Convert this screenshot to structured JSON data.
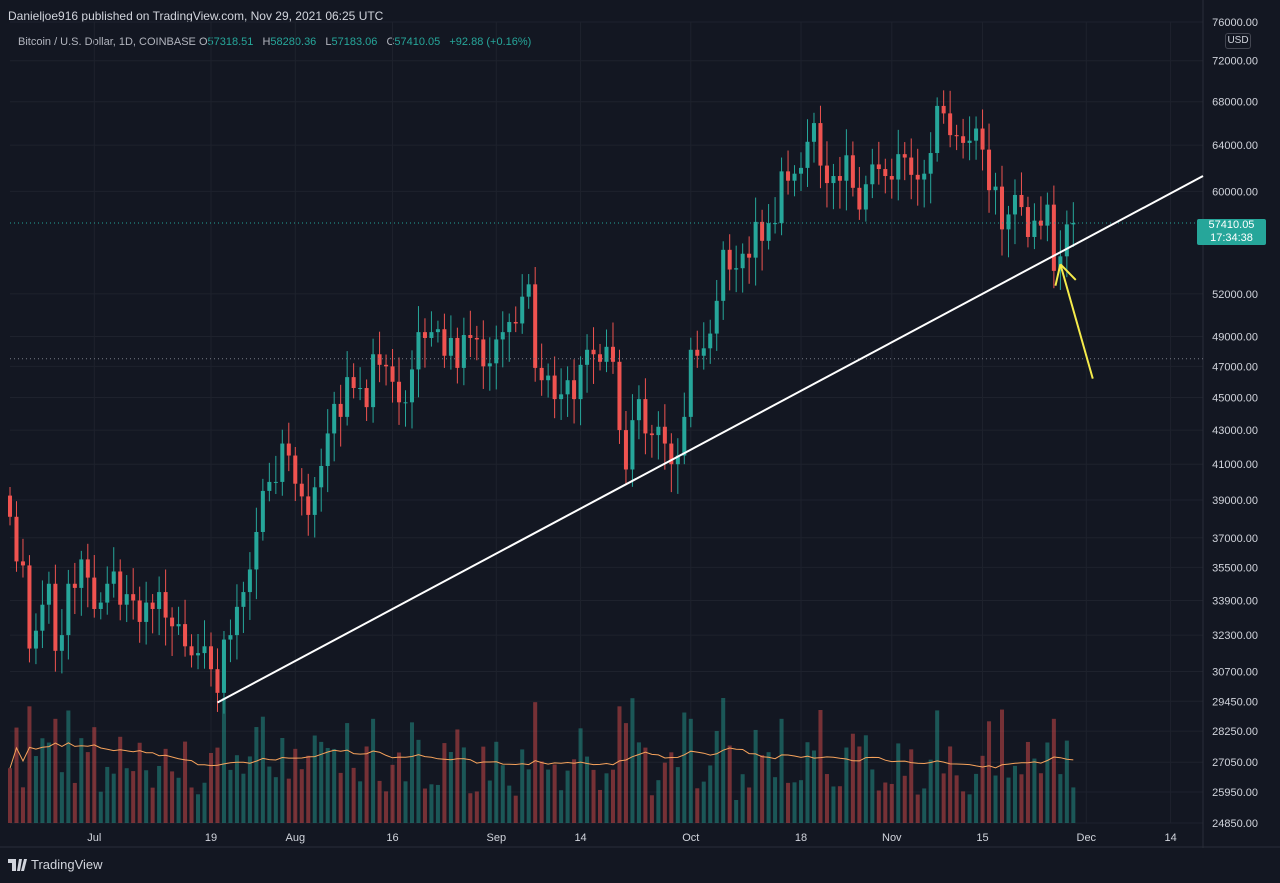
{
  "header": {
    "published": "Danieljoe916 published on TradingView.com, Nov 29, 2021 06:25 UTC",
    "symbol": "Bitcoin / U.S. Dollar, 1D, COINBASE",
    "open_label": "O",
    "open": "57318.51",
    "high_label": "H",
    "high": "58280.36",
    "low_label": "L",
    "low": "57183.06",
    "close_label": "C",
    "close": "57410.05",
    "change": "+92.88 (+0.16%)"
  },
  "currency": "USD",
  "last_price": {
    "price": "57410.05",
    "countdown": "17:34:38"
  },
  "footer": {
    "brand": "TradingView",
    "icon": "tradingview-logo-icon"
  },
  "colors": {
    "up": "#26a69a",
    "down": "#ef5350",
    "background": "#131722",
    "grid": "#1e222d",
    "trendline": "#ffffff",
    "arrow": "#f5eb4b",
    "volume_ma": "#f7a35c"
  },
  "chart_data": {
    "type": "candlestick",
    "symbol": "BTC/USD",
    "interval": "1D",
    "x_tick_labels": [
      "Jul",
      "19",
      "Aug",
      "16",
      "Sep",
      "14",
      "Oct",
      "18",
      "Nov",
      "15",
      "Dec",
      "14"
    ],
    "x_tick_dates": [
      "2021-07-01",
      "2021-07-19",
      "2021-08-01",
      "2021-08-16",
      "2021-09-01",
      "2021-09-14",
      "2021-10-01",
      "2021-10-18",
      "2021-11-01",
      "2021-11-15",
      "2021-12-01",
      "2021-12-14"
    ],
    "y_tick_labels": [
      "76000.00",
      "72000.00",
      "68000.00",
      "64000.00",
      "60000.00",
      "57410.05",
      "52000.00",
      "49000.00",
      "47000.00",
      "45000.00",
      "43000.00",
      "41000.00",
      "39000.00",
      "37000.00",
      "35500.00",
      "33900.00",
      "32300.00",
      "30700.00",
      "29450.00",
      "28250.00",
      "27050.00",
      "25950.00",
      "24850.00"
    ],
    "y_scale": "logarithmic",
    "ylim": [
      24850,
      76000
    ],
    "xlim": [
      "2021-06-18",
      "2021-12-19"
    ],
    "grid": true,
    "closes": [
      [
        "2021-06-18",
        38100
      ],
      [
        "2021-06-19",
        35800
      ],
      [
        "2021-06-20",
        35600
      ],
      [
        "2021-06-21",
        31700
      ],
      [
        "2021-06-22",
        32500
      ],
      [
        "2021-06-23",
        33700
      ],
      [
        "2021-06-24",
        34700
      ],
      [
        "2021-06-25",
        31600
      ],
      [
        "2021-06-26",
        32300
      ],
      [
        "2021-06-27",
        34700
      ],
      [
        "2021-06-28",
        34500
      ],
      [
        "2021-06-29",
        35900
      ],
      [
        "2021-06-30",
        35000
      ],
      [
        "2021-07-01",
        33500
      ],
      [
        "2021-07-02",
        33800
      ],
      [
        "2021-07-03",
        34700
      ],
      [
        "2021-07-04",
        35300
      ],
      [
        "2021-07-05",
        33700
      ],
      [
        "2021-07-06",
        34200
      ],
      [
        "2021-07-07",
        33900
      ],
      [
        "2021-07-08",
        32900
      ],
      [
        "2021-07-09",
        33800
      ],
      [
        "2021-07-10",
        33500
      ],
      [
        "2021-07-11",
        34300
      ],
      [
        "2021-07-12",
        33100
      ],
      [
        "2021-07-13",
        32700
      ],
      [
        "2021-07-14",
        32800
      ],
      [
        "2021-07-15",
        31800
      ],
      [
        "2021-07-16",
        31400
      ],
      [
        "2021-07-17",
        31500
      ],
      [
        "2021-07-18",
        31800
      ],
      [
        "2021-07-19",
        30800
      ],
      [
        "2021-07-20",
        29800
      ],
      [
        "2021-07-21",
        32100
      ],
      [
        "2021-07-22",
        32300
      ],
      [
        "2021-07-23",
        33600
      ],
      [
        "2021-07-24",
        34300
      ],
      [
        "2021-07-25",
        35400
      ],
      [
        "2021-07-26",
        37300
      ],
      [
        "2021-07-27",
        39500
      ],
      [
        "2021-07-28",
        40000
      ],
      [
        "2021-07-29",
        40000
      ],
      [
        "2021-07-30",
        42200
      ],
      [
        "2021-07-31",
        41500
      ],
      [
        "2021-08-01",
        39900
      ],
      [
        "2021-08-02",
        39200
      ],
      [
        "2021-08-03",
        38200
      ],
      [
        "2021-08-04",
        39700
      ],
      [
        "2021-08-05",
        40900
      ],
      [
        "2021-08-06",
        42800
      ],
      [
        "2021-08-07",
        44600
      ],
      [
        "2021-08-08",
        43800
      ],
      [
        "2021-08-09",
        46300
      ],
      [
        "2021-08-10",
        45600
      ],
      [
        "2021-08-11",
        45600
      ],
      [
        "2021-08-12",
        44400
      ],
      [
        "2021-08-13",
        47800
      ],
      [
        "2021-08-14",
        47100
      ],
      [
        "2021-08-15",
        47000
      ],
      [
        "2021-08-16",
        46000
      ],
      [
        "2021-08-17",
        44700
      ],
      [
        "2021-08-18",
        44700
      ],
      [
        "2021-08-19",
        46800
      ],
      [
        "2021-08-20",
        49300
      ],
      [
        "2021-08-21",
        48900
      ],
      [
        "2021-08-22",
        49300
      ],
      [
        "2021-08-23",
        49500
      ],
      [
        "2021-08-24",
        47700
      ],
      [
        "2021-08-25",
        48900
      ],
      [
        "2021-08-26",
        46900
      ],
      [
        "2021-08-27",
        49100
      ],
      [
        "2021-08-28",
        48900
      ],
      [
        "2021-08-29",
        48800
      ],
      [
        "2021-08-30",
        47000
      ],
      [
        "2021-08-31",
        47200
      ],
      [
        "2021-09-01",
        48800
      ],
      [
        "2021-09-02",
        49300
      ],
      [
        "2021-09-03",
        50000
      ],
      [
        "2021-09-04",
        49900
      ],
      [
        "2021-09-05",
        51800
      ],
      [
        "2021-09-06",
        52700
      ],
      [
        "2021-09-07",
        46900
      ],
      [
        "2021-09-08",
        46100
      ],
      [
        "2021-09-09",
        46400
      ],
      [
        "2021-09-10",
        44900
      ],
      [
        "2021-09-11",
        45200
      ],
      [
        "2021-09-12",
        46100
      ],
      [
        "2021-09-13",
        44900
      ],
      [
        "2021-09-14",
        47100
      ],
      [
        "2021-09-15",
        48100
      ],
      [
        "2021-09-16",
        47800
      ],
      [
        "2021-09-17",
        47300
      ],
      [
        "2021-09-18",
        48300
      ],
      [
        "2021-09-19",
        47300
      ],
      [
        "2021-09-20",
        43000
      ],
      [
        "2021-09-21",
        40700
      ],
      [
        "2021-09-22",
        43600
      ],
      [
        "2021-09-23",
        44900
      ],
      [
        "2021-09-24",
        42800
      ],
      [
        "2021-09-25",
        42700
      ],
      [
        "2021-09-26",
        43200
      ],
      [
        "2021-09-27",
        42200
      ],
      [
        "2021-09-28",
        41000
      ],
      [
        "2021-09-29",
        41500
      ],
      [
        "2021-09-30",
        43800
      ],
      [
        "2021-10-01",
        48100
      ],
      [
        "2021-10-02",
        47700
      ],
      [
        "2021-10-03",
        48200
      ],
      [
        "2021-10-04",
        49200
      ],
      [
        "2021-10-05",
        51500
      ],
      [
        "2021-10-06",
        55300
      ],
      [
        "2021-10-07",
        53800
      ],
      [
        "2021-10-08",
        53900
      ],
      [
        "2021-10-09",
        55000
      ],
      [
        "2021-10-10",
        54700
      ],
      [
        "2021-10-11",
        57500
      ],
      [
        "2021-10-12",
        56000
      ],
      [
        "2021-10-13",
        57400
      ],
      [
        "2021-10-14",
        57400
      ],
      [
        "2021-10-15",
        61700
      ],
      [
        "2021-10-16",
        60900
      ],
      [
        "2021-10-17",
        61500
      ],
      [
        "2021-10-18",
        62000
      ],
      [
        "2021-10-19",
        64300
      ],
      [
        "2021-10-20",
        66000
      ],
      [
        "2021-10-21",
        62200
      ],
      [
        "2021-10-22",
        60700
      ],
      [
        "2021-10-23",
        61300
      ],
      [
        "2021-10-24",
        60900
      ],
      [
        "2021-10-25",
        63100
      ],
      [
        "2021-10-26",
        60300
      ],
      [
        "2021-10-27",
        58500
      ],
      [
        "2021-10-28",
        60600
      ],
      [
        "2021-10-29",
        62300
      ],
      [
        "2021-10-30",
        61900
      ],
      [
        "2021-10-31",
        61300
      ],
      [
        "2021-11-01",
        61000
      ],
      [
        "2021-11-02",
        63200
      ],
      [
        "2021-11-03",
        62900
      ],
      [
        "2021-11-04",
        61400
      ],
      [
        "2021-11-05",
        61000
      ],
      [
        "2021-11-06",
        61500
      ],
      [
        "2021-11-07",
        63300
      ],
      [
        "2021-11-08",
        67600
      ],
      [
        "2021-11-09",
        66900
      ],
      [
        "2021-11-10",
        64900
      ],
      [
        "2021-11-11",
        64800
      ],
      [
        "2021-11-12",
        64200
      ],
      [
        "2021-11-13",
        64400
      ],
      [
        "2021-11-14",
        65500
      ],
      [
        "2021-11-15",
        63600
      ],
      [
        "2021-11-16",
        60100
      ],
      [
        "2021-11-17",
        60400
      ],
      [
        "2021-11-18",
        56900
      ],
      [
        "2021-11-19",
        58100
      ],
      [
        "2021-11-20",
        59700
      ],
      [
        "2021-11-21",
        58700
      ],
      [
        "2021-11-22",
        56300
      ],
      [
        "2021-11-23",
        57600
      ],
      [
        "2021-11-24",
        57200
      ],
      [
        "2021-11-25",
        58900
      ],
      [
        "2021-11-26",
        53700
      ],
      [
        "2021-11-27",
        54800
      ],
      [
        "2021-11-28",
        57300
      ],
      [
        "2021-11-29",
        57410
      ]
    ],
    "trendline": {
      "from": [
        "2021-07-20",
        29400
      ],
      "to": [
        "2021-12-19",
        61300
      ],
      "label": ""
    },
    "annotation_arrow": {
      "from": [
        "2021-12-02",
        46200
      ],
      "to": [
        "2021-11-27",
        54200
      ]
    },
    "volume_series": true,
    "volume_ma_series": true
  }
}
